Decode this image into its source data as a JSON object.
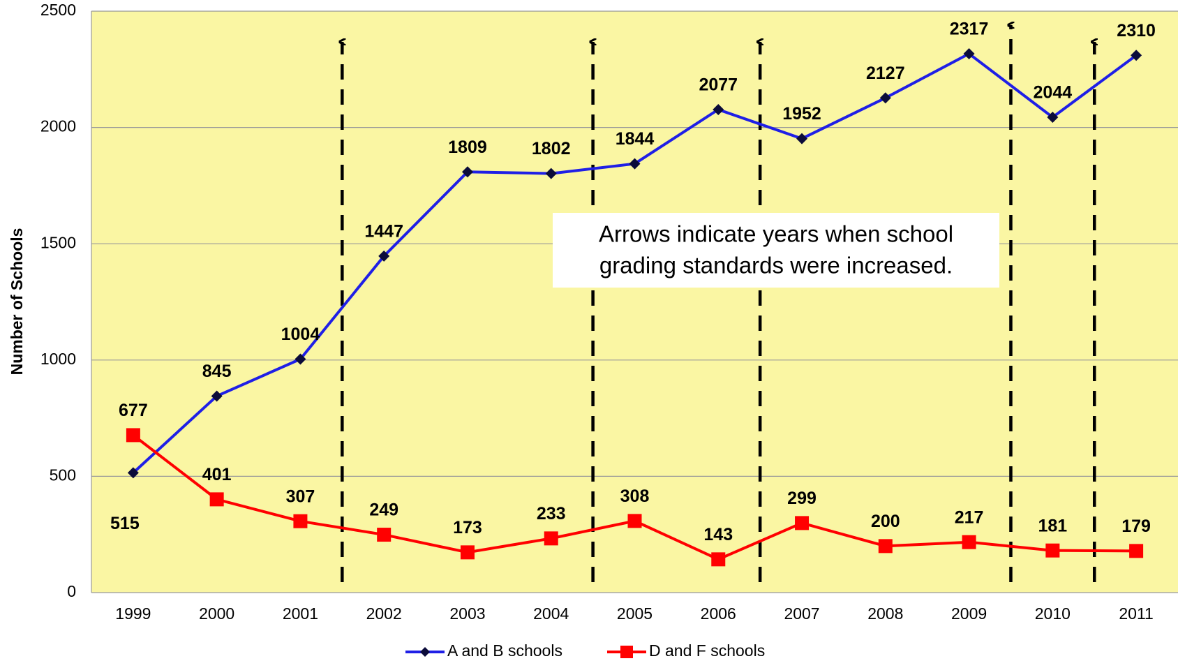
{
  "chart_data": {
    "type": "line",
    "y_label": "Number of Schools",
    "annotation": [
      "Arrows indicate years when school",
      "grading standards were increased."
    ],
    "categories": [
      "1999",
      "2000",
      "2001",
      "2002",
      "2003",
      "2004",
      "2005",
      "2006",
      "2007",
      "2008",
      "2009",
      "2010",
      "2011"
    ],
    "series": [
      {
        "name": "A and B schools",
        "color": "#1f1fe6",
        "marker": "diamond",
        "values": [
          515,
          845,
          1004,
          1447,
          1809,
          1802,
          1844,
          2077,
          1952,
          2127,
          2317,
          2044,
          2310
        ]
      },
      {
        "name": "D and F schools",
        "color": "#ff0000",
        "marker": "square",
        "values": [
          677,
          401,
          307,
          249,
          173,
          233,
          308,
          143,
          299,
          200,
          217,
          181,
          179
        ]
      }
    ],
    "ylim": [
      0,
      2500
    ],
    "yticks": [
      0,
      500,
      1000,
      1500,
      2000,
      2500
    ],
    "grid": true
  }
}
